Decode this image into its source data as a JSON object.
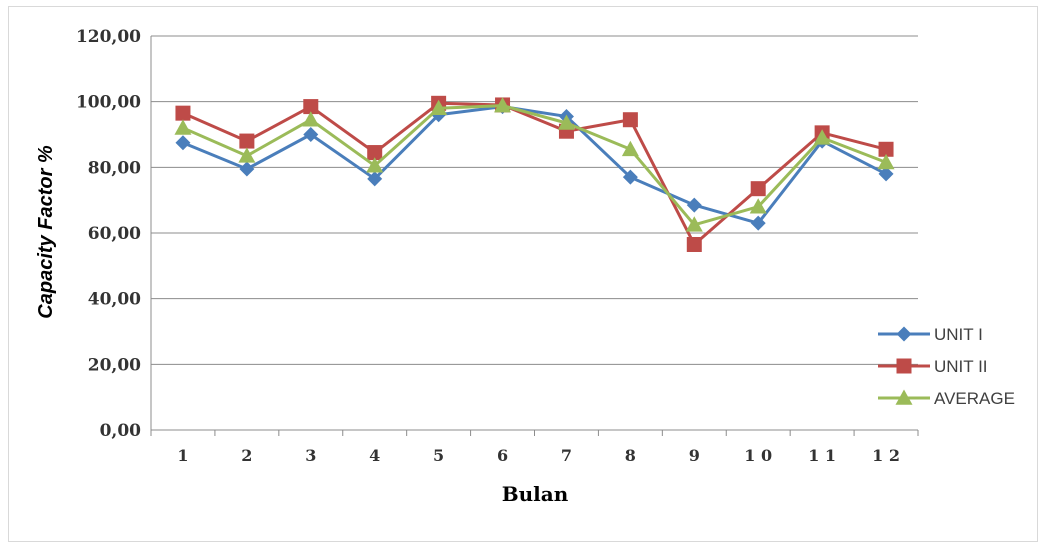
{
  "chart_data": {
    "type": "line",
    "xlabel": "Bulan",
    "ylabel": "Capacity Factor %",
    "x": [
      "1",
      "2",
      "3",
      "4",
      "5",
      "6",
      "7",
      "8",
      "9",
      "1 0",
      "1 1",
      "1 2"
    ],
    "y_ticks": [
      "0,00",
      "20,00",
      "40,00",
      "60,00",
      "80,00",
      "100,00",
      "120,00"
    ],
    "ylim": [
      0,
      120
    ],
    "grid": true,
    "legend_position": "right",
    "series": [
      {
        "name": "UNIT I",
        "color": "#4a7ebb",
        "marker": "diamond",
        "values": [
          87.5,
          79.5,
          90,
          76.5,
          96,
          98.5,
          95.5,
          77,
          68.5,
          63,
          88,
          78
        ]
      },
      {
        "name": "UNIT II",
        "color": "#be4b48",
        "marker": "square",
        "values": [
          96.5,
          88,
          98.5,
          84.5,
          99.5,
          99,
          91,
          94.5,
          56.5,
          73.5,
          90.5,
          85.5
        ]
      },
      {
        "name": "AVERAGE",
        "color": "#9bbb59",
        "marker": "triangle",
        "values": [
          92,
          83.5,
          94.5,
          80.5,
          98,
          98.8,
          93.5,
          85.5,
          62.5,
          68,
          89,
          81.5
        ]
      }
    ]
  }
}
